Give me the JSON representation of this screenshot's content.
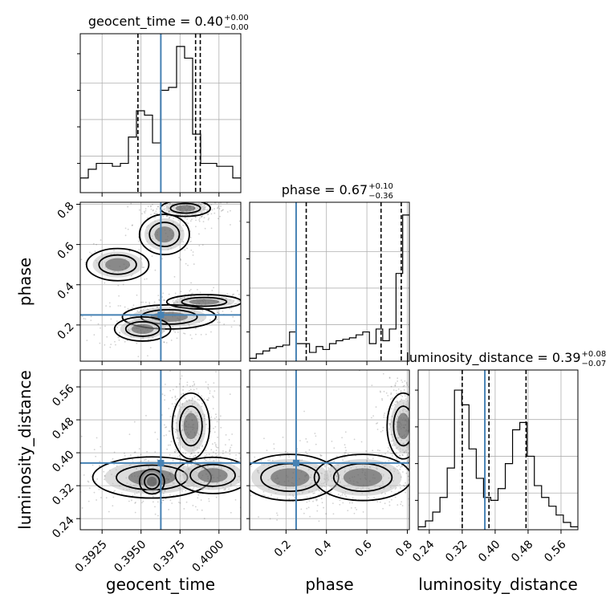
{
  "chart_data": {
    "type": "corner",
    "parameters": [
      "geocent_time",
      "phase",
      "luminosity_distance"
    ],
    "truth": {
      "geocent_time": 0.39627,
      "phase": 0.25,
      "luminosity_distance": 0.375
    },
    "truth_color": "#4682b4",
    "titles": [
      {
        "param": "geocent_time",
        "text": "geocent_time = 0.40",
        "upper": "+0.00",
        "lower": "−0.00"
      },
      {
        "param": "phase",
        "text": "phase = 0.67",
        "upper": "+0.10",
        "lower": "−0.36"
      },
      {
        "param": "luminosity_distance",
        "text": "luminosity_distance = 0.39",
        "upper": "+0.08",
        "lower": "−0.07"
      }
    ],
    "axis_labels": {
      "geocent_time": "geocent_time",
      "phase": "phase",
      "luminosity_distance": "luminosity_distance"
    },
    "ranges": {
      "geocent_time": [
        0.3911,
        0.4014
      ],
      "phase": [
        0.02,
        0.81
      ],
      "luminosity_distance": [
        0.213,
        0.601
      ]
    },
    "ticks": {
      "geocent_time": [
        {
          "v": 0.3925,
          "label": "0.3925"
        },
        {
          "v": 0.395,
          "label": "0.3950"
        },
        {
          "v": 0.3975,
          "label": "0.3975"
        },
        {
          "v": 0.4,
          "label": "0.4000"
        }
      ],
      "phase": [
        {
          "v": 0.2,
          "label": "0.2"
        },
        {
          "v": 0.4,
          "label": "0.4"
        },
        {
          "v": 0.6,
          "label": "0.6"
        },
        {
          "v": 0.8,
          "label": "0.8"
        }
      ],
      "luminosity_distance": [
        {
          "v": 0.24,
          "label": "0.24"
        },
        {
          "v": 0.32,
          "label": "0.32"
        },
        {
          "v": 0.4,
          "label": "0.40"
        },
        {
          "v": 0.48,
          "label": "0.48"
        },
        {
          "v": 0.56,
          "label": "0.56"
        }
      ]
    },
    "quantiles": {
      "geocent_time": [
        0.3948,
        0.3985,
        0.3988
      ],
      "phase": [
        0.3,
        0.67,
        0.77
      ],
      "luminosity_distance": [
        0.32,
        0.385,
        0.475
      ]
    },
    "histograms": {
      "geocent_time": {
        "range": [
          0.3911,
          0.4014
        ],
        "counts": [
          0.1,
          0.16,
          0.2,
          0.2,
          0.18,
          0.2,
          0.38,
          0.56,
          0.53,
          0.34,
          0.7,
          0.72,
          1.0,
          0.92,
          0.4,
          0.2,
          0.2,
          0.18,
          0.18,
          0.1
        ]
      },
      "phase": {
        "range": [
          0.02,
          0.81
        ],
        "counts": [
          0.02,
          0.05,
          0.07,
          0.09,
          0.1,
          0.11,
          0.2,
          0.12,
          0.12,
          0.06,
          0.1,
          0.08,
          0.12,
          0.14,
          0.15,
          0.16,
          0.18,
          0.2,
          0.12,
          0.22,
          0.14,
          0.22,
          0.6,
          1.0
        ]
      },
      "luminosity_distance": {
        "range": [
          0.213,
          0.601
        ],
        "counts": [
          0.02,
          0.06,
          0.12,
          0.22,
          0.42,
          0.95,
          0.85,
          0.55,
          0.35,
          0.22,
          0.2,
          0.28,
          0.45,
          0.68,
          0.73,
          0.5,
          0.3,
          0.22,
          0.16,
          0.1,
          0.05,
          0.02
        ]
      }
    },
    "density_clusters": {
      "phase_vs_geocent_time": [
        {
          "x": 0.39785,
          "y": 0.78,
          "sx": 0.0008,
          "sy": 0.02,
          "w": 0.35
        },
        {
          "x": 0.39905,
          "y": 0.315,
          "sx": 0.0012,
          "sy": 0.018,
          "w": 0.18
        },
        {
          "x": 0.3968,
          "y": 0.24,
          "sx": 0.0015,
          "sy": 0.03,
          "w": 0.18
        },
        {
          "x": 0.3951,
          "y": 0.18,
          "sx": 0.0009,
          "sy": 0.03,
          "w": 0.12
        },
        {
          "x": 0.3965,
          "y": 0.65,
          "sx": 0.0008,
          "sy": 0.05,
          "w": 0.1
        },
        {
          "x": 0.3935,
          "y": 0.5,
          "sx": 0.001,
          "sy": 0.04,
          "w": 0.07
        }
      ],
      "luminosity_distance_vs_geocent_time": [
        {
          "x": 0.3982,
          "y": 0.465,
          "sx": 0.0006,
          "sy": 0.04,
          "w": 0.4
        },
        {
          "x": 0.3957,
          "y": 0.34,
          "sx": 0.0019,
          "sy": 0.025,
          "w": 0.3
        },
        {
          "x": 0.3996,
          "y": 0.345,
          "sx": 0.0012,
          "sy": 0.022,
          "w": 0.18
        },
        {
          "x": 0.3957,
          "y": 0.33,
          "sx": 0.0004,
          "sy": 0.015,
          "w": 0.12
        }
      ],
      "luminosity_distance_vs_phase": [
        {
          "x": 0.78,
          "y": 0.465,
          "sx": 0.04,
          "sy": 0.04,
          "w": 0.45
        },
        {
          "x": 0.22,
          "y": 0.34,
          "sx": 0.12,
          "sy": 0.028,
          "w": 0.25
        },
        {
          "x": 0.58,
          "y": 0.34,
          "sx": 0.12,
          "sy": 0.028,
          "w": 0.3
        }
      ]
    }
  }
}
